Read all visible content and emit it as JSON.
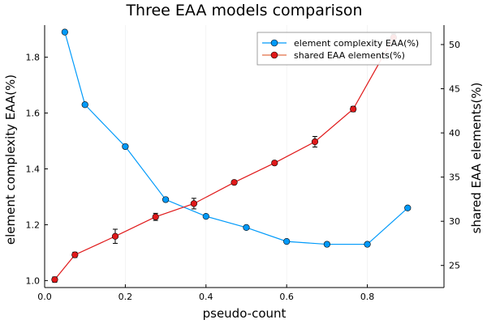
{
  "chart_data": {
    "type": "line",
    "title": "Three EAA models comparison",
    "xlabel": "pseudo-count",
    "ylabel_left": "element complexity EAA(%)",
    "ylabel_right": "shared EAA elements(%)",
    "xlim": [
      0.0,
      0.99
    ],
    "ylim_left": [
      0.975,
      1.915
    ],
    "ylim_right": [
      22.5,
      52.2
    ],
    "x_ticks": [
      0.0,
      0.2,
      0.4,
      0.6,
      0.8
    ],
    "x_tick_labels": [
      "0.0",
      "0.2",
      "0.4",
      "0.6",
      "0.8"
    ],
    "y_left_ticks": [
      1.0,
      1.2,
      1.4,
      1.6,
      1.8
    ],
    "y_left_tick_labels": [
      "1.0",
      "1.2",
      "1.4",
      "1.6",
      "1.8"
    ],
    "y_right_ticks": [
      25,
      30,
      35,
      40,
      45,
      50
    ],
    "y_right_tick_labels": [
      "25",
      "30",
      "35",
      "40",
      "45",
      "50"
    ],
    "grid": true,
    "legend_position": "top-right",
    "series": [
      {
        "name": "element complexity EAA(%)",
        "axis": "left",
        "color": "#009AFA",
        "marker": "circle",
        "x": [
          0.05,
          0.1,
          0.2,
          0.3,
          0.4,
          0.5,
          0.6,
          0.7,
          0.8,
          0.9
        ],
        "y": [
          1.89,
          1.63,
          1.48,
          1.29,
          1.23,
          1.19,
          1.14,
          1.13,
          1.13,
          1.26
        ]
      },
      {
        "name": "shared EAA elements(%)",
        "axis": "right",
        "color": "#E26F46",
        "marker": "circle",
        "x": [
          0.025,
          0.075,
          0.175,
          0.275,
          0.37,
          0.47,
          0.57,
          0.67,
          0.765,
          0.865
        ],
        "y": [
          23.4,
          26.2,
          28.3,
          30.5,
          32.0,
          34.4,
          36.6,
          39.0,
          42.7,
          50.8
        ],
        "err": [
          0.3,
          0.3,
          0.8,
          0.4,
          0.6,
          0.2,
          0.2,
          0.6,
          0.3,
          0.4
        ]
      }
    ]
  }
}
